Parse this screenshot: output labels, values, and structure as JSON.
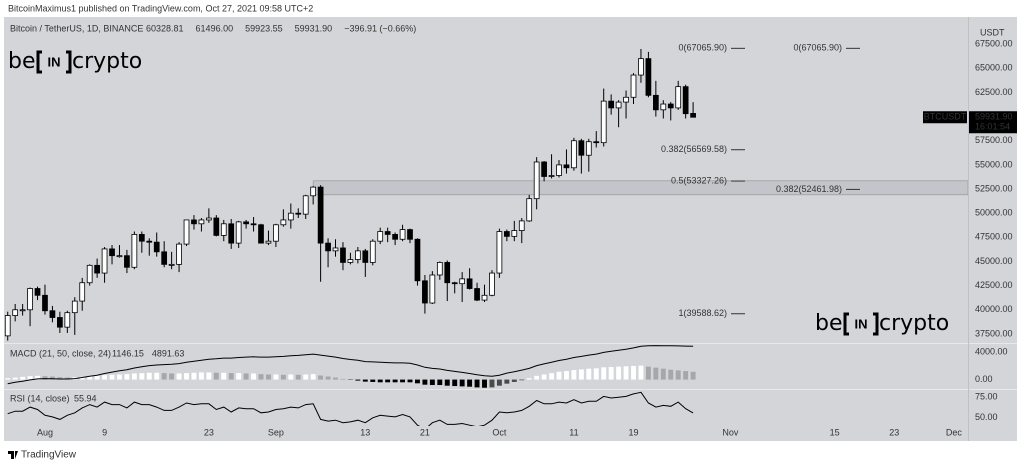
{
  "header": {
    "publisher": "BitcoinMaximus1 published on TradingView.com, Oct 27, 2021 09:58 UTC+2",
    "symbol": "Bitcoin / TetherUS, 1D, BINANCE",
    "legend_values": [
      "60328.81",
      "61496.00",
      "59923.55",
      "59931.90",
      "−396.91 (−0.66%)"
    ]
  },
  "watermark": {
    "left": "be",
    "middle": "IN",
    "right": "crypto"
  },
  "footer": "TradingView",
  "chart_data": {
    "type": "candlestick",
    "symbol_label": "BTCUSDT",
    "currency": "USDT",
    "last_price": {
      "value": 59931.9,
      "label": "59931.90"
    },
    "countdown": "16:01:54",
    "up_color": "#ffffff",
    "down_color": "#000000",
    "ohlc": [
      [
        37300,
        39800,
        36800,
        39400
      ],
      [
        39400,
        40600,
        38800,
        40000
      ],
      [
        40000,
        40600,
        39400,
        40000
      ],
      [
        40000,
        42300,
        38300,
        42200
      ],
      [
        42200,
        42400,
        41000,
        41500
      ],
      [
        41500,
        42600,
        39500,
        39900
      ],
      [
        39900,
        40400,
        38700,
        39200
      ],
      [
        39200,
        39800,
        37600,
        38200
      ],
      [
        38200,
        39900,
        37600,
        39700
      ],
      [
        39700,
        41300,
        37400,
        40900
      ],
      [
        40900,
        43300,
        39900,
        42800
      ],
      [
        42800,
        44700,
        42500,
        44600
      ],
      [
        44600,
        45300,
        43300,
        43800
      ],
      [
        43800,
        46500,
        42800,
        46300
      ],
      [
        46300,
        46700,
        44700,
        45600
      ],
      [
        45600,
        46700,
        45400,
        45600
      ],
      [
        45600,
        46200,
        43800,
        44400
      ],
      [
        44400,
        48100,
        44200,
        47800
      ],
      [
        47800,
        48100,
        45900,
        47100
      ],
      [
        47100,
        47400,
        45600,
        47000
      ],
      [
        47000,
        48000,
        45500,
        46000
      ],
      [
        46000,
        47100,
        44400,
        44700
      ],
      [
        44700,
        46000,
        44200,
        44700
      ],
      [
        44700,
        47000,
        43900,
        46800
      ],
      [
        46800,
        49300,
        46600,
        49300
      ],
      [
        49300,
        49800,
        48300,
        48900
      ],
      [
        48900,
        49500,
        48100,
        49300
      ],
      [
        49300,
        50500,
        49000,
        49500
      ],
      [
        49500,
        49800,
        47600,
        47700
      ],
      [
        47700,
        49300,
        47100,
        48900
      ],
      [
        48900,
        49400,
        46300,
        46900
      ],
      [
        46900,
        49200,
        46400,
        49100
      ],
      [
        49100,
        49300,
        48400,
        48900
      ],
      [
        48900,
        49600,
        48100,
        48800
      ],
      [
        48800,
        48900,
        46900,
        46900
      ],
      [
        46900,
        48200,
        46700,
        47100
      ],
      [
        47100,
        48900,
        46500,
        48800
      ],
      [
        48800,
        50400,
        48600,
        49300
      ],
      [
        49300,
        51000,
        48400,
        50000
      ],
      [
        50000,
        50500,
        49500,
        49900
      ],
      [
        49900,
        51900,
        49400,
        51800
      ],
      [
        51800,
        52800,
        50900,
        52700
      ],
      [
        52700,
        52900,
        42900,
        46900
      ],
      [
        46900,
        47400,
        44400,
        46100
      ],
      [
        46100,
        47300,
        45500,
        46400
      ],
      [
        46400,
        47000,
        44100,
        44900
      ],
      [
        44900,
        45900,
        44700,
        45200
      ],
      [
        45200,
        46500,
        44800,
        46100
      ],
      [
        46100,
        46300,
        43400,
        44900
      ],
      [
        44900,
        47300,
        44600,
        47100
      ],
      [
        47100,
        48500,
        46800,
        48100
      ],
      [
        48100,
        48500,
        47000,
        47800
      ],
      [
        47800,
        48000,
        46700,
        47300
      ],
      [
        47300,
        48800,
        47100,
        48300
      ],
      [
        48300,
        48400,
        46900,
        47300
      ],
      [
        47300,
        47400,
        42500,
        43000
      ],
      [
        43000,
        43600,
        39600,
        40700
      ],
      [
        40700,
        44000,
        40600,
        43600
      ],
      [
        43600,
        45000,
        43100,
        44900
      ],
      [
        44900,
        45100,
        40900,
        42800
      ],
      [
        42800,
        42900,
        41700,
        42700
      ],
      [
        42700,
        43900,
        40800,
        43200
      ],
      [
        43200,
        44300,
        42100,
        42200
      ],
      [
        42200,
        42800,
        40900,
        41000
      ],
      [
        41000,
        42600,
        40800,
        41500
      ],
      [
        41500,
        44100,
        41400,
        43800
      ],
      [
        43800,
        48400,
        43300,
        48100
      ],
      [
        48100,
        48300,
        47100,
        47600
      ],
      [
        47600,
        49200,
        47100,
        48200
      ],
      [
        48200,
        49500,
        46900,
        49200
      ],
      [
        49200,
        51900,
        49100,
        51500
      ],
      [
        51500,
        55800,
        50400,
        55300
      ],
      [
        55300,
        55400,
        53300,
        53800
      ],
      [
        53800,
        56100,
        53600,
        53900
      ],
      [
        53900,
        55500,
        53700,
        55000
      ],
      [
        55000,
        56600,
        54100,
        54700
      ],
      [
        54700,
        57800,
        54400,
        57500
      ],
      [
        57500,
        57700,
        54100,
        56000
      ],
      [
        56000,
        57700,
        54300,
        57400
      ],
      [
        57400,
        58500,
        56800,
        57300
      ],
      [
        57300,
        62900,
        56900,
        61600
      ],
      [
        61600,
        62300,
        60200,
        60900
      ],
      [
        60900,
        61700,
        58900,
        61500
      ],
      [
        61500,
        62700,
        59800,
        62000
      ],
      [
        62000,
        64500,
        61300,
        64300
      ],
      [
        64300,
        67000,
        63500,
        66000
      ],
      [
        66000,
        66700,
        62000,
        62200
      ],
      [
        62200,
        63700,
        60000,
        60700
      ],
      [
        60700,
        61700,
        59800,
        61300
      ],
      [
        61300,
        61500,
        59600,
        60900
      ],
      [
        60900,
        63700,
        60700,
        63100
      ],
      [
        63100,
        63300,
        59800,
        60300
      ],
      [
        60328.81,
        61496,
        59923.55,
        59931.9
      ]
    ],
    "xlim": [
      -0.5,
      128.9
    ],
    "xticks": [
      {
        "value": 5,
        "label": "Aug"
      },
      {
        "value": 13,
        "label": "9"
      },
      {
        "value": 27,
        "label": "23"
      },
      {
        "value": 36,
        "label": "Sep"
      },
      {
        "value": 48,
        "label": "13"
      },
      {
        "value": 56,
        "label": "21"
      },
      {
        "value": 66,
        "label": "Oct"
      },
      {
        "value": 76,
        "label": "11"
      },
      {
        "value": 84,
        "label": "19"
      },
      {
        "value": 97,
        "label": "Nov"
      },
      {
        "value": 111,
        "label": "15"
      },
      {
        "value": 119,
        "label": "23"
      },
      {
        "value": 127,
        "label": "Dec"
      }
    ],
    "ylim": [
      36560,
      70310
    ],
    "yticks": [
      {
        "value": 37500,
        "label": "37500.00"
      },
      {
        "value": 40000,
        "label": "40000.00"
      },
      {
        "value": 42500,
        "label": "42500.00"
      },
      {
        "value": 45000,
        "label": "45000.00"
      },
      {
        "value": 47500,
        "label": "47500.00"
      },
      {
        "value": 50000,
        "label": "50000.00"
      },
      {
        "value": 52500,
        "label": "52500.00"
      },
      {
        "value": 55000,
        "label": "55000.00"
      },
      {
        "value": 57500,
        "label": "57500.00"
      },
      {
        "value": 60000,
        "label": "60000.00"
      },
      {
        "value": 62500,
        "label": "62500.00"
      },
      {
        "value": 65000,
        "label": "65000.00"
      },
      {
        "value": 67500,
        "label": "67500.00"
      }
    ],
    "zone": [
      51900,
      53350
    ],
    "zone_color": "#c3c5ca",
    "fib_retracements": [
      {
        "levels": [
          {
            "value": 67065.9,
            "label": "0(67065.90)"
          },
          {
            "value": 56569.58,
            "label": "0.382(56569.58)"
          },
          {
            "value": 53327.26,
            "label": "0.5(53327.26)"
          },
          {
            "value": 39588.62,
            "label": "1(39588.62)"
          }
        ]
      },
      {
        "levels": [
          {
            "value": 67065.9,
            "label": "0(67065.90)"
          },
          {
            "value": 52461.98,
            "label": "0.382(52461.98)"
          }
        ]
      }
    ],
    "macd": {
      "title": "MACD (21, 50, close, 24)",
      "readouts": [
        "1146.15",
        "4891.63"
      ],
      "histogram": [
        200,
        300,
        400,
        500,
        550,
        500,
        450,
        350,
        300,
        350,
        400,
        500,
        550,
        650,
        700,
        750,
        800,
        900,
        950,
        1000,
        1000,
        950,
        900,
        900,
        950,
        1000,
        1050,
        1050,
        1000,
        1000,
        950,
        950,
        900,
        900,
        800,
        750,
        750,
        700,
        750,
        700,
        750,
        800,
        600,
        450,
        300,
        100,
        -50,
        -150,
        -300,
        -350,
        -400,
        -400,
        -400,
        -400,
        -400,
        -550,
        -750,
        -800,
        -800,
        -900,
        -950,
        -1000,
        -1050,
        -1150,
        -1200,
        -1150,
        -900,
        -600,
        -350,
        -100,
        200,
        550,
        750,
        950,
        1150,
        1250,
        1400,
        1500,
        1600,
        1650,
        1800,
        1850,
        1900,
        1950,
        2000,
        2050,
        1900,
        1750,
        1600,
        1450,
        1350,
        1250,
        1146.15
      ],
      "line": [
        -600,
        -400,
        -250,
        -50,
        100,
        150,
        130,
        80,
        80,
        150,
        300,
        500,
        650,
        900,
        1100,
        1300,
        1450,
        1700,
        1900,
        2050,
        2150,
        2200,
        2250,
        2350,
        2550,
        2700,
        2850,
        3000,
        3050,
        3150,
        3150,
        3250,
        3300,
        3350,
        3300,
        3300,
        3350,
        3400,
        3500,
        3550,
        3650,
        3750,
        3600,
        3450,
        3300,
        3100,
        2950,
        2850,
        2650,
        2600,
        2550,
        2500,
        2450,
        2450,
        2400,
        2150,
        1800,
        1650,
        1550,
        1350,
        1200,
        1050,
        900,
        700,
        550,
        500,
        650,
        950,
        1150,
        1400,
        1650,
        2050,
        2300,
        2550,
        2800,
        3000,
        3250,
        3400,
        3600,
        3750,
        4000,
        4150,
        4300,
        4450,
        4650,
        4900,
        4980,
        4990,
        4980,
        4960,
        4950,
        4920,
        4891.63
      ],
      "colors": {
        "up_rising": "#ffffff",
        "up_falling": "#a6a7ab",
        "down_falling": "#000000",
        "down_rising": "#4a4a4a",
        "line": "#000000"
      },
      "ylim": [
        -1385,
        5230
      ],
      "yticks": [
        {
          "value": 4000,
          "label": "4000.00"
        },
        {
          "value": 0,
          "label": "0.00"
        }
      ]
    },
    "rsi": {
      "title": "RSI (14, close)",
      "readout": "55.94",
      "color": "#000000",
      "values": [
        55,
        58,
        58,
        63,
        60,
        53,
        51,
        48,
        53,
        56,
        62,
        66,
        63,
        69,
        66,
        66,
        62,
        69,
        66,
        66,
        63,
        59,
        59,
        63,
        68,
        66,
        67,
        67,
        60,
        63,
        57,
        62,
        61,
        61,
        56,
        57,
        60,
        61,
        63,
        62,
        66,
        67,
        48,
        46,
        47,
        44,
        45,
        47,
        44,
        50,
        53,
        52,
        51,
        54,
        51,
        41,
        36,
        44,
        47,
        42,
        42,
        43,
        41,
        39,
        41,
        47,
        57,
        56,
        57,
        59,
        64,
        71,
        67,
        67,
        69,
        68,
        72,
        68,
        70,
        70,
        76,
        74,
        75,
        76,
        79,
        81,
        68,
        63,
        65,
        64,
        69,
        61,
        55.94
      ],
      "ylim": [
        40,
        83.75
      ],
      "yticks": [
        {
          "value": 75,
          "label": "75.00"
        },
        {
          "value": 50,
          "label": "50.00"
        }
      ]
    }
  }
}
